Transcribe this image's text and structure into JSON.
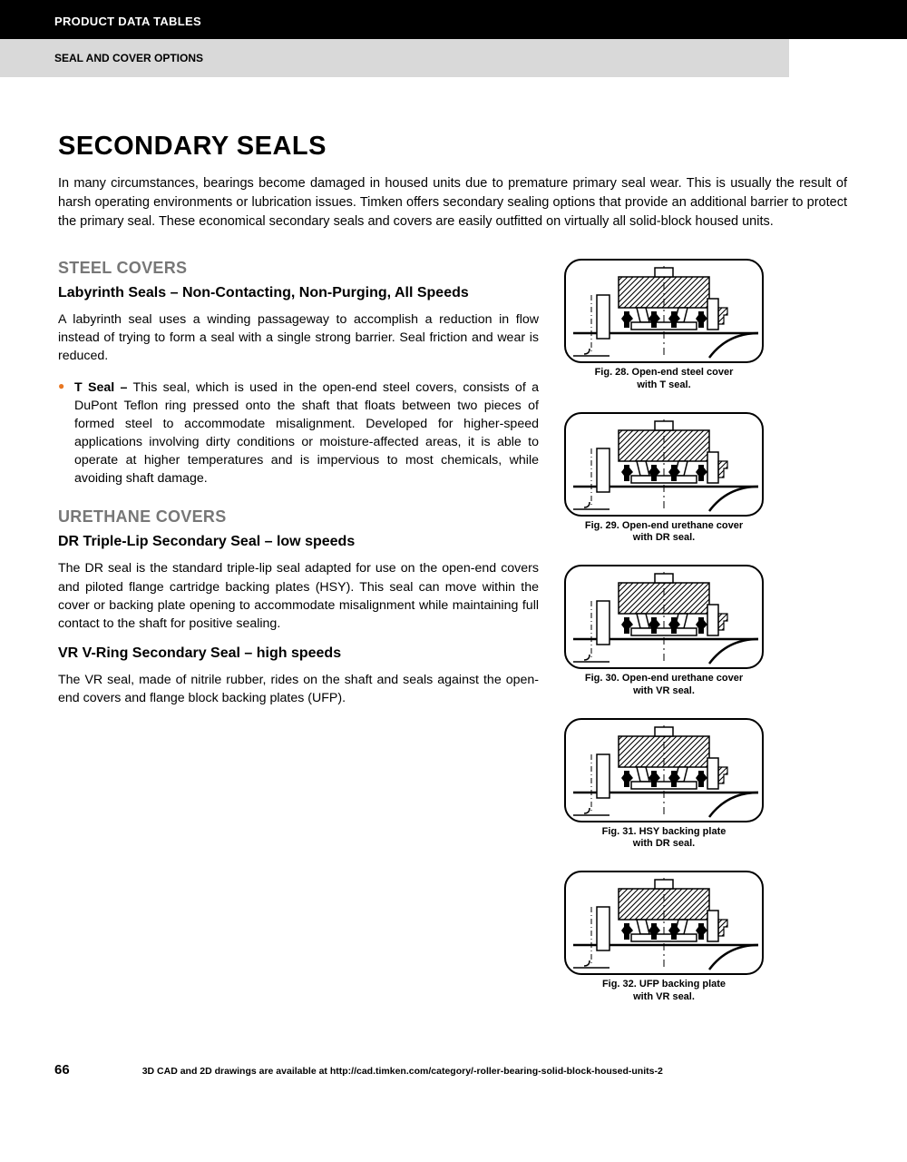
{
  "header": {
    "black_bar": "PRODUCT DATA TABLES",
    "gray_bar": "SEAL AND COVER OPTIONS"
  },
  "title": "SECONDARY SEALS",
  "intro": "In many circumstances, bearings become damaged in housed units due to premature primary seal wear. This is usually the result of harsh operating environments or lubrication issues. Timken offers secondary sealing options that provide an additional barrier to protect the primary seal. These economical secondary seals and covers are easily outfitted on virtually all solid-block housed units.",
  "sections": {
    "steel": {
      "heading": "STEEL COVERS",
      "sub": "Labyrinth Seals – Non-Contacting, Non-Purging, All Speeds",
      "para": "A labyrinth seal uses a winding passageway to accomplish a reduction in flow instead of trying to form a seal with a single strong barrier. Seal friction and wear is reduced.",
      "bullet_lead": "T Seal –",
      "bullet_body": " This seal, which is used in the open-end steel covers, consists of a DuPont Teflon ring pressed onto the shaft that floats between two pieces of formed steel to accommodate misalignment. Developed for higher-speed applications involving dirty conditions or moisture-affected areas, it is able to operate at higher temperatures and is impervious to most chemicals, while avoiding shaft damage."
    },
    "urethane": {
      "heading": "URETHANE COVERS",
      "dr_sub": "DR Triple-Lip Secondary Seal – low speeds",
      "dr_para": "The DR seal is the standard triple-lip seal adapted for use on the open-end covers and piloted flange cartridge backing plates (HSY). This seal can move within the cover or backing plate opening to accommodate misalignment while maintaining full contact to the shaft for positive sealing.",
      "vr_sub": "VR V-Ring Secondary Seal – high speeds",
      "vr_para": "The VR seal, made of nitrile rubber, rides on the shaft and seals against the open-end covers and flange block backing plates (UFP)."
    }
  },
  "figures": [
    {
      "cap1": "Fig. 28. Open-end steel cover",
      "cap2": "with T seal."
    },
    {
      "cap1": "Fig. 29. Open-end urethane cover",
      "cap2": "with DR seal."
    },
    {
      "cap1": "Fig. 30. Open-end urethane cover",
      "cap2": "with VR seal."
    },
    {
      "cap1": "Fig. 31. HSY backing plate",
      "cap2": "with DR seal."
    },
    {
      "cap1": "Fig. 32. UFP backing plate",
      "cap2": "with VR seal."
    }
  ],
  "footer": {
    "page_num": "66",
    "text": "3D CAD and 2D drawings are available at http://cad.timken.com/category/-roller-bearing-solid-block-housed-units-2"
  },
  "style": {
    "accent_color": "#e87722",
    "gray_heading": "#777777",
    "fig_width": 220,
    "fig_height": 115,
    "fig_border_radius": 18
  }
}
